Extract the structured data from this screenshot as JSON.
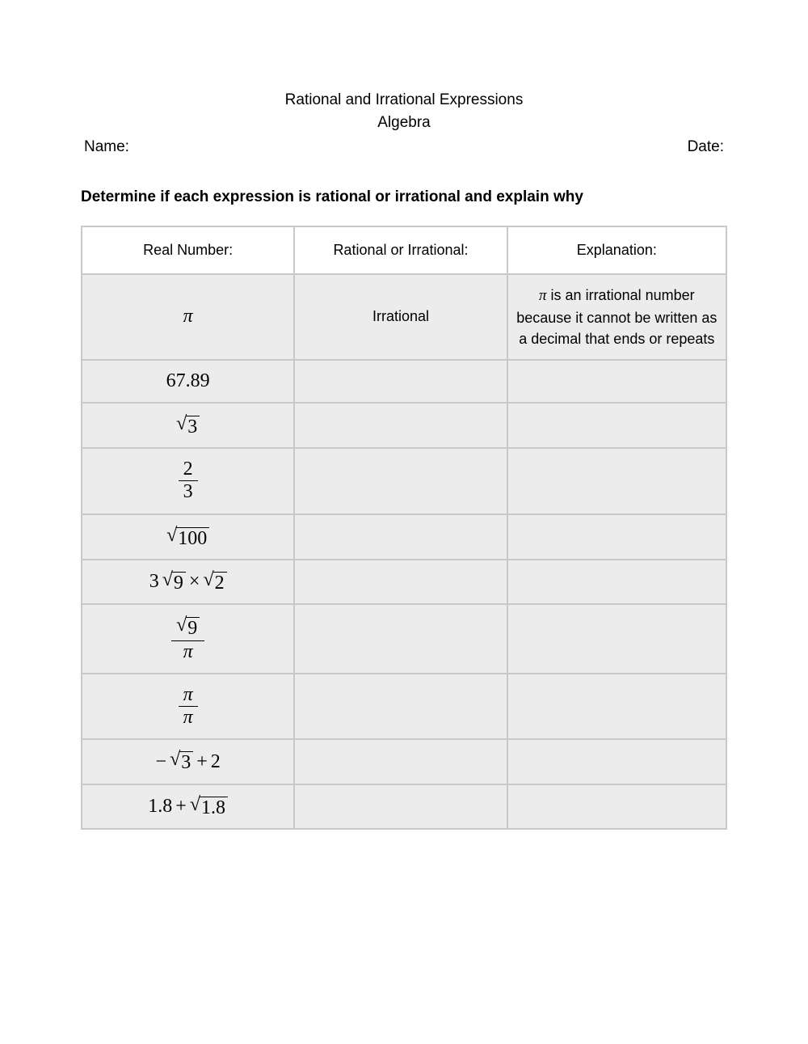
{
  "header": {
    "title_line1": "Rational and Irrational Expressions",
    "title_line2": "Algebra"
  },
  "meta": {
    "name_label": "Name:",
    "date_label": "Date:"
  },
  "instructions": "Determine if each expression is rational or irrational and explain why",
  "table": {
    "columns": [
      "Real Number:",
      "Rational or Irrational:",
      "Explanation:"
    ],
    "column_widths_pct": [
      33,
      33,
      34
    ],
    "header_bg": "#ffffff",
    "cell_bg": "#ececec",
    "border_color": "#c8c8c8",
    "rows": [
      {
        "expr": {
          "type": "symbol",
          "value": "π",
          "latex": "\\pi"
        },
        "answer": "Irrational",
        "explanation": "π is an irrational number because it cannot be written as a decimal that ends or repeats",
        "row_height": "tall"
      },
      {
        "expr": {
          "type": "number",
          "value": "67.89",
          "latex": "67.89"
        },
        "answer": "",
        "explanation": "",
        "row_height": "med"
      },
      {
        "expr": {
          "type": "sqrt",
          "arg": "3",
          "latex": "\\sqrt{3}"
        },
        "answer": "",
        "explanation": "",
        "row_height": "short"
      },
      {
        "expr": {
          "type": "frac",
          "num": "2",
          "den": "3",
          "latex": "\\frac{2}{3}"
        },
        "answer": "",
        "explanation": "",
        "row_height": "short"
      },
      {
        "expr": {
          "type": "sqrt",
          "arg": "100",
          "latex": "\\sqrt{100}"
        },
        "answer": "",
        "explanation": "",
        "row_height": "short"
      },
      {
        "expr": {
          "type": "product",
          "parts": [
            {
              "type": "number",
              "value": "3"
            },
            {
              "type": "sqrt",
              "arg": "9"
            },
            {
              "type": "op",
              "value": "×"
            },
            {
              "type": "sqrt",
              "arg": "2"
            }
          ],
          "latex": "3\\sqrt{9}\\times\\sqrt{2}"
        },
        "answer": "",
        "explanation": "",
        "row_height": "short"
      },
      {
        "expr": {
          "type": "frac",
          "num_expr": {
            "type": "sqrt",
            "arg": "9"
          },
          "den_expr": {
            "type": "symbol",
            "value": "π"
          },
          "latex": "\\frac{\\sqrt{9}}{\\pi}"
        },
        "answer": "",
        "explanation": "",
        "row_height": "short"
      },
      {
        "expr": {
          "type": "frac",
          "num_expr": {
            "type": "symbol",
            "value": "π"
          },
          "den_expr": {
            "type": "symbol",
            "value": "π"
          },
          "latex": "\\frac{\\pi}{\\pi}"
        },
        "answer": "",
        "explanation": "",
        "row_height": "short"
      },
      {
        "expr": {
          "type": "sum",
          "parts": [
            {
              "type": "neg_sqrt",
              "arg": "3"
            },
            {
              "type": "op",
              "value": "+"
            },
            {
              "type": "number",
              "value": "2"
            }
          ],
          "latex": "-\\sqrt{3}+2"
        },
        "answer": "",
        "explanation": "",
        "row_height": "short"
      },
      {
        "expr": {
          "type": "sum",
          "parts": [
            {
              "type": "number",
              "value": "1.8"
            },
            {
              "type": "op",
              "value": "+"
            },
            {
              "type": "sqrt",
              "arg": "1.8"
            }
          ],
          "latex": "1.8+\\sqrt{1.8}"
        },
        "answer": "",
        "explanation": "",
        "row_height": "short"
      }
    ]
  },
  "typography": {
    "body_font": "Comic Sans MS",
    "math_font": "Times New Roman",
    "title_fontsize_pt": 14,
    "body_fontsize_pt": 14,
    "math_fontsize_pt": 18
  },
  "colors": {
    "background": "#ffffff",
    "text": "#000000",
    "cell_bg": "#ececec",
    "border": "#c8c8c8"
  }
}
